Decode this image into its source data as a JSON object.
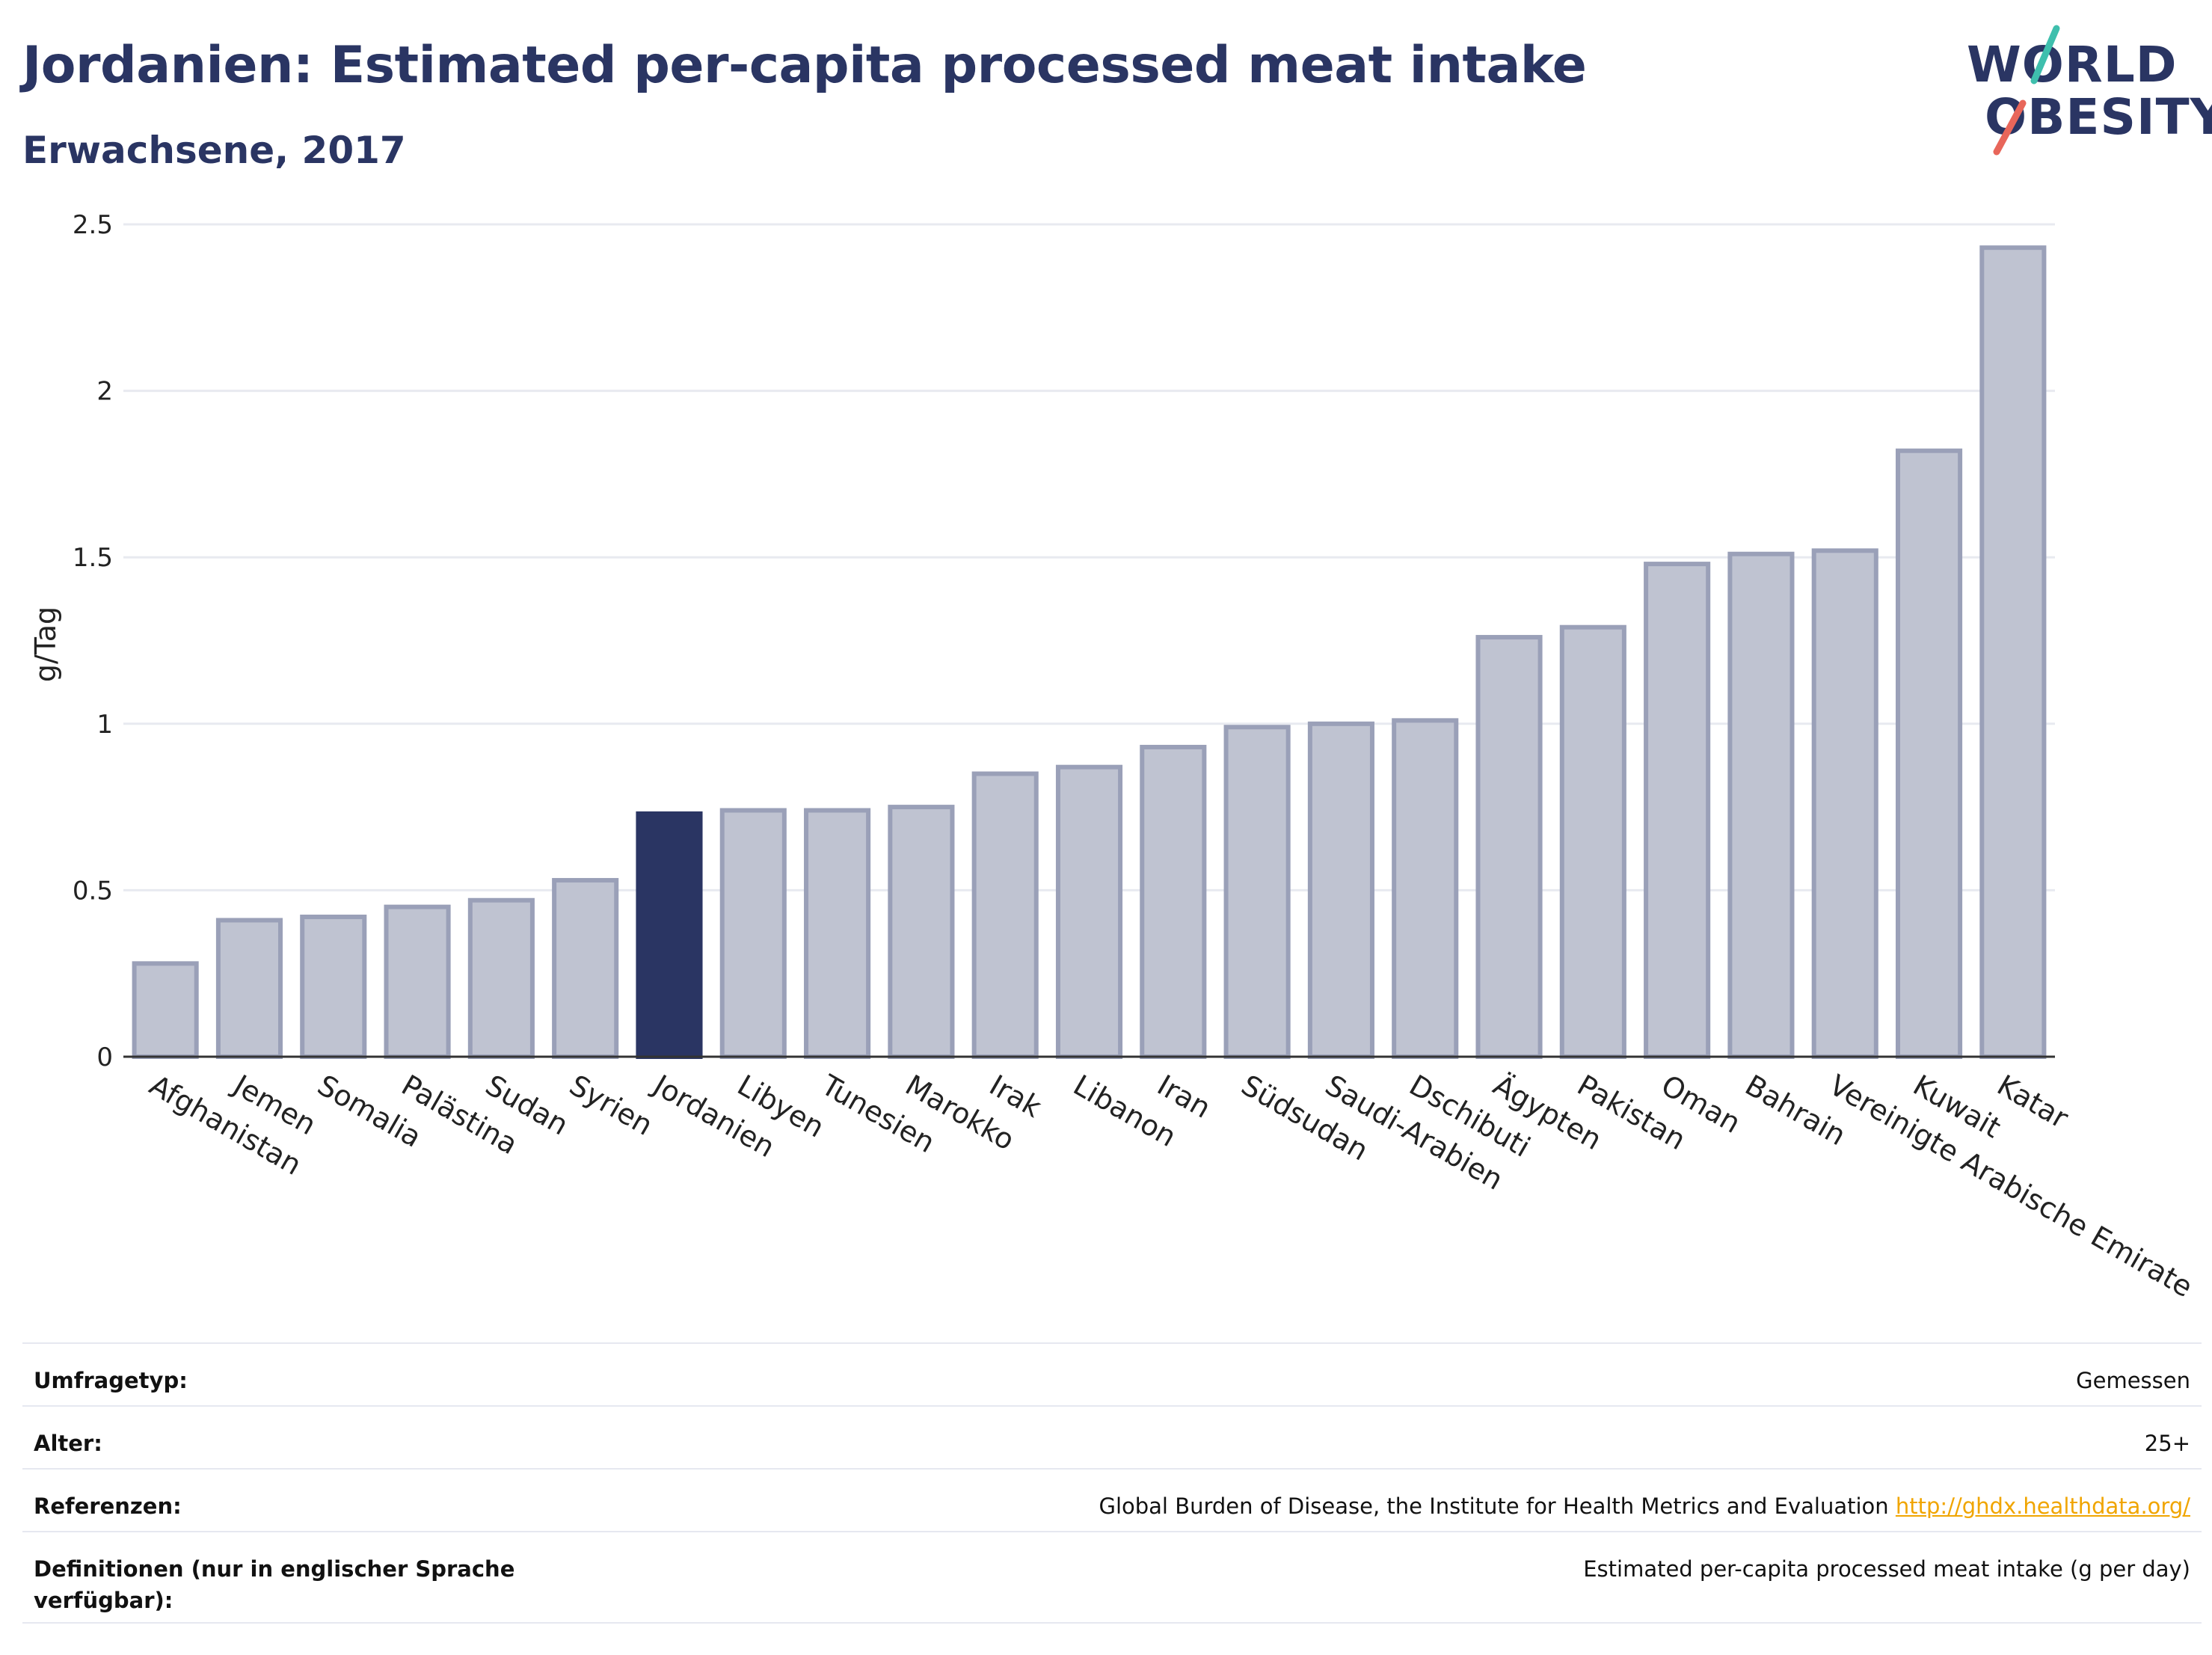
{
  "header": {
    "title": "Jordanien: Estimated per-capita processed meat intake",
    "subtitle": "Erwachsene, 2017"
  },
  "logo": {
    "line1": "WORLD",
    "line2": "OBESITY",
    "stroke_colors": [
      "#3fbfad",
      "#e8665a"
    ]
  },
  "colors": {
    "highlight": "#2a3563",
    "bar_fill": "#bfc3d1",
    "bar_stroke": "#9aa0b8",
    "grid": "#e8eaf0",
    "axis": "#333333",
    "link": "#f0a500"
  },
  "chart_data": {
    "type": "bar",
    "title": "Jordanien: Estimated per-capita processed meat intake",
    "subtitle": "Erwachsene, 2017",
    "ylabel": "g/Tag",
    "xlabel": "",
    "ylim": [
      0,
      2.5
    ],
    "yticks": [
      0,
      0.5,
      1,
      1.5,
      2,
      2.5
    ],
    "ytick_labels": [
      "0",
      "0.5",
      "1",
      "1.5",
      "2",
      "2.5"
    ],
    "grid": true,
    "highlight": "Jordanien",
    "categories": [
      "Afghanistan",
      "Jemen",
      "Somalia",
      "Palästina",
      "Sudan",
      "Syrien",
      "Jordanien",
      "Libyen",
      "Tunesien",
      "Marokko",
      "Irak",
      "Libanon",
      "Iran",
      "Südsudan",
      "Saudi-Arabien",
      "Dschibuti",
      "Ägypten",
      "Pakistan",
      "Oman",
      "Bahrain",
      "Vereinigte Arabische Emirate",
      "Kuwait",
      "Katar"
    ],
    "values": [
      0.28,
      0.41,
      0.42,
      0.45,
      0.47,
      0.53,
      0.73,
      0.74,
      0.74,
      0.75,
      0.85,
      0.87,
      0.93,
      0.99,
      1.0,
      1.01,
      1.26,
      1.29,
      1.48,
      1.51,
      1.52,
      1.82,
      2.43
    ]
  },
  "info": {
    "rows": [
      {
        "label": "Umfragetyp:",
        "value": "Gemessen"
      },
      {
        "label": "Alter:",
        "value": "25+"
      },
      {
        "label": "Referenzen:",
        "value": "Global Burden of Disease, the Institute for Health Metrics and Evaluation",
        "link": "http://ghdx.healthdata.org/"
      },
      {
        "label": "Definitionen (nur in englischer Sprache verfügbar):",
        "value": "Estimated per-capita processed meat intake (g per day)"
      }
    ]
  }
}
